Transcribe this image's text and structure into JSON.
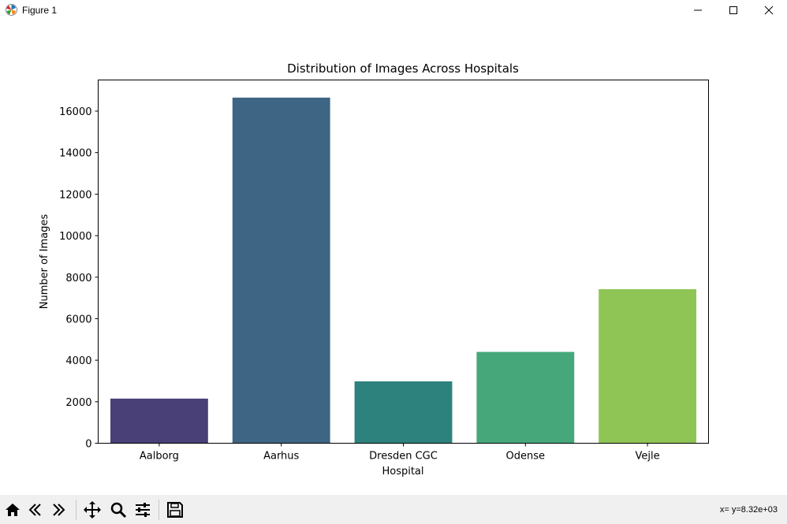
{
  "window": {
    "title": "Figure 1",
    "controls": [
      "minimize",
      "maximize",
      "close"
    ]
  },
  "toolbar": {
    "buttons": [
      "home-icon",
      "back-icon",
      "forward-icon",
      "pan-icon",
      "zoom-icon",
      "configure-subplots-icon",
      "save-icon"
    ],
    "coords_text": "x= y=8.32e+03"
  },
  "chart_data": {
    "type": "bar",
    "title": "Distribution of Images Across Hospitals",
    "xlabel": "Hospital",
    "ylabel": "Number of Images",
    "categories": [
      "Aalborg",
      "Aarhus",
      "Dresden CGC",
      "Odense",
      "Vejle"
    ],
    "values": [
      2150,
      16650,
      2980,
      4400,
      7420
    ],
    "colors": [
      "#4a4078",
      "#3e6583",
      "#2e827e",
      "#46a87a",
      "#8fc555"
    ],
    "ylim": [
      0,
      17500
    ],
    "yticks": [
      0,
      2000,
      4000,
      6000,
      8000,
      10000,
      12000,
      14000,
      16000
    ],
    "grid": false
  }
}
